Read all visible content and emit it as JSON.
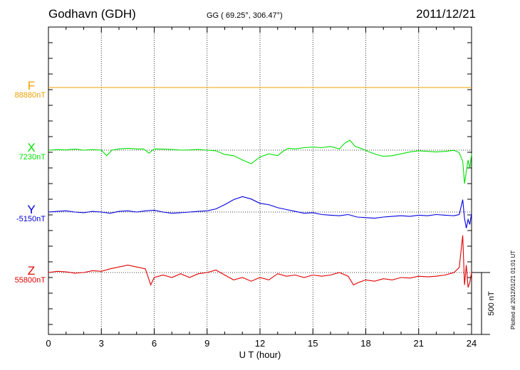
{
  "header": {
    "station": "Godhavn (GDH)",
    "coords": "GG ( 69.25°, 306.47°)",
    "date": "2011/12/21"
  },
  "plotted_note": "Plotted at 2012/01/21 01:01 UT",
  "chart_data": {
    "type": "line",
    "title": "Godhavn (GDH)",
    "xlabel": "U T (hour)",
    "xlim": [
      0,
      24
    ],
    "xticks": [
      0,
      3,
      6,
      9,
      12,
      15,
      18,
      21,
      24
    ],
    "grid": "dotted vertical lines every 3 hours; dotted baseline per component",
    "scale_bar": {
      "label": "500 nT",
      "value_nT": 500
    },
    "series": [
      {
        "name": "F",
        "baseline_label": "88880nT",
        "color": "#f0a000",
        "x": [
          0,
          24
        ],
        "y": [
          88880,
          88880
        ]
      },
      {
        "name": "X",
        "baseline_label": "7230nT",
        "color": "#00e000",
        "x": [
          0,
          0.5,
          1,
          1.5,
          2,
          2.5,
          3,
          3.3,
          3.6,
          4,
          4.5,
          5,
          5.4,
          5.7,
          6,
          6.5,
          7,
          7.5,
          8,
          8.5,
          9,
          9.5,
          10,
          10.5,
          11,
          11.5,
          12,
          12.5,
          13,
          13.3,
          13.6,
          14,
          14.5,
          15,
          15.5,
          16,
          16.5,
          16.8,
          17.1,
          17.4,
          17.8,
          18.2,
          18.6,
          19,
          19.5,
          20,
          20.5,
          21,
          21.5,
          22,
          22.5,
          23,
          23.3,
          23.5,
          23.6,
          23.7,
          23.8,
          23.9,
          24
        ],
        "y": [
          7230,
          7234,
          7232,
          7238,
          7230,
          7234,
          7230,
          7185,
          7230,
          7240,
          7245,
          7240,
          7240,
          7205,
          7240,
          7238,
          7235,
          7230,
          7232,
          7235,
          7230,
          7225,
          7195,
          7185,
          7150,
          7120,
          7175,
          7200,
          7185,
          7220,
          7245,
          7240,
          7250,
          7255,
          7250,
          7260,
          7240,
          7285,
          7310,
          7260,
          7240,
          7215,
          7195,
          7180,
          7185,
          7200,
          7215,
          7225,
          7220,
          7215,
          7220,
          7228,
          7210,
          7140,
          6960,
          7060,
          7150,
          7085,
          7200
        ]
      },
      {
        "name": "Y",
        "baseline_label": "-5150nT",
        "color": "#0000e0",
        "x": [
          0,
          0.5,
          1,
          1.5,
          2,
          2.5,
          3,
          3.5,
          4,
          4.5,
          5,
          5.5,
          6,
          6.5,
          7,
          7.5,
          8,
          8.5,
          9,
          9.5,
          10,
          10.5,
          11,
          11.5,
          12,
          12.5,
          13,
          13.5,
          14,
          14.5,
          15,
          15.5,
          16,
          16.5,
          17,
          17.5,
          18,
          18.5,
          19,
          19.5,
          20,
          20.5,
          21,
          21.5,
          22,
          22.5,
          23,
          23.3,
          23.5,
          23.6,
          23.7,
          23.8,
          23.9,
          24
        ],
        "y": [
          -5150,
          -5145,
          -5140,
          -5150,
          -5155,
          -5145,
          -5150,
          -5160,
          -5145,
          -5140,
          -5150,
          -5140,
          -5135,
          -5150,
          -5160,
          -5155,
          -5150,
          -5145,
          -5140,
          -5125,
          -5090,
          -5050,
          -5025,
          -5045,
          -5080,
          -5090,
          -5115,
          -5130,
          -5145,
          -5160,
          -5155,
          -5170,
          -5175,
          -5180,
          -5170,
          -5190,
          -5195,
          -5200,
          -5190,
          -5185,
          -5180,
          -5185,
          -5175,
          -5180,
          -5170,
          -5175,
          -5180,
          -5170,
          -5050,
          -5200,
          -5280,
          -5210,
          -5250,
          -5160
        ]
      },
      {
        "name": "Z",
        "baseline_label": "55800nT",
        "color": "#e00000",
        "x": [
          0,
          0.5,
          1,
          1.5,
          2,
          2.5,
          3,
          3.5,
          4,
          4.5,
          5,
          5.5,
          5.8,
          6,
          6.5,
          7,
          7.5,
          8,
          8.5,
          9,
          9.5,
          10,
          10.5,
          11,
          11.5,
          12,
          12.5,
          13,
          13.5,
          14,
          14.5,
          15,
          15.5,
          16,
          16.5,
          17,
          17.3,
          17.6,
          18,
          18.5,
          19,
          19.5,
          20,
          20.5,
          21,
          21.5,
          22,
          22.5,
          23,
          23.3,
          23.5,
          23.6,
          23.7,
          23.8,
          23.9,
          24
        ],
        "y": [
          55800,
          55810,
          55805,
          55795,
          55800,
          55815,
          55810,
          55830,
          55845,
          55860,
          55845,
          55830,
          55700,
          55760,
          55780,
          55760,
          55790,
          55760,
          55790,
          55800,
          55820,
          55780,
          55740,
          55760,
          55730,
          55760,
          55740,
          55790,
          55770,
          55780,
          55760,
          55780,
          55770,
          55780,
          55800,
          55770,
          55700,
          55720,
          55740,
          55730,
          55750,
          55740,
          55760,
          55755,
          55770,
          55765,
          55770,
          55780,
          55800,
          55840,
          56100,
          55700,
          55860,
          55680,
          55720,
          55800
        ]
      },
      {
        "name": "Z scale",
        "color": "#000000"
      }
    ],
    "y_offsets_pixels_note": "",
    "tick_labels": [
      "0",
      "3",
      "6",
      "9",
      "12",
      "15",
      "18",
      "21",
      "24"
    ]
  }
}
